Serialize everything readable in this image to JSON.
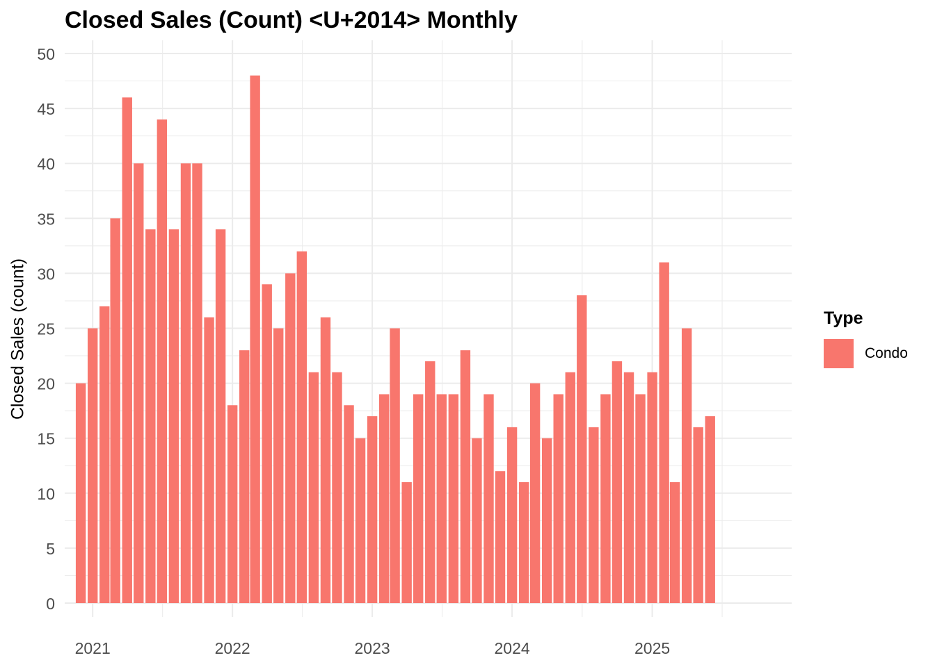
{
  "chart_data": {
    "type": "bar",
    "title": "Closed Sales (Count) <U+2014> Monthly",
    "xlabel": "",
    "ylabel": "Closed Sales (count)",
    "ylim": [
      0,
      50
    ],
    "y_ticks": [
      "0",
      "5",
      "10",
      "15",
      "20",
      "25",
      "30",
      "35",
      "40",
      "45",
      "50"
    ],
    "x_ticks": [
      "2021",
      "2022",
      "2023",
      "2024",
      "2025"
    ],
    "x_tick_dates": [
      "2021-01-01",
      "2022-01-01",
      "2023-01-01",
      "2024-01-01",
      "2025-01-01"
    ],
    "x_range": [
      "2020-10-20",
      "2025-12-31"
    ],
    "grid": true,
    "legend": {
      "title": "Type",
      "position": "right"
    },
    "series": [
      {
        "name": "Condo",
        "color": "#F8766D",
        "x": [
          "2020-12",
          "2021-01",
          "2021-02",
          "2021-03",
          "2021-04",
          "2021-05",
          "2021-06",
          "2021-07",
          "2021-08",
          "2021-09",
          "2021-10",
          "2021-11",
          "2021-12",
          "2022-01",
          "2022-02",
          "2022-03",
          "2022-04",
          "2022-05",
          "2022-06",
          "2022-07",
          "2022-08",
          "2022-09",
          "2022-10",
          "2022-11",
          "2022-12",
          "2023-01",
          "2023-02",
          "2023-03",
          "2023-04",
          "2023-05",
          "2023-06",
          "2023-07",
          "2023-08",
          "2023-09",
          "2023-10",
          "2023-11",
          "2023-12",
          "2024-01",
          "2024-02",
          "2024-03",
          "2024-04",
          "2024-05",
          "2024-06",
          "2024-07",
          "2024-08",
          "2024-09",
          "2024-10",
          "2024-11",
          "2024-12",
          "2025-01",
          "2025-02",
          "2025-03",
          "2025-04",
          "2025-05",
          "2025-06",
          "2025-07"
        ],
        "values": [
          20,
          25,
          27,
          35,
          46,
          40,
          34,
          44,
          34,
          40,
          40,
          26,
          34,
          18,
          23,
          48,
          29,
          25,
          30,
          32,
          21,
          26,
          21,
          18,
          15,
          17,
          19,
          25,
          11,
          19,
          22,
          19,
          19,
          23,
          15,
          19,
          12,
          16,
          11,
          20,
          15,
          19,
          21,
          28,
          16,
          19,
          22,
          21,
          19,
          21,
          31,
          11,
          25,
          16,
          17,
          0
        ]
      }
    ]
  }
}
